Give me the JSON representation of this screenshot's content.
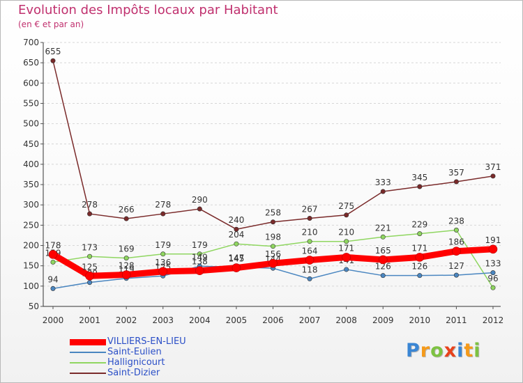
{
  "chart_data": {
    "type": "line",
    "title": "Evolution des Impôts locaux par Habitant",
    "subtitle": "(en € et par an)",
    "xlabel": "",
    "ylabel": "",
    "x": [
      2000,
      2001,
      2002,
      2003,
      2004,
      2005,
      2006,
      2007,
      2008,
      2009,
      2010,
      2011,
      2012
    ],
    "ylim": [
      50,
      700
    ],
    "yticks": [
      50,
      100,
      150,
      200,
      250,
      300,
      350,
      400,
      450,
      500,
      550,
      600,
      650,
      700
    ],
    "grid": "horizontal",
    "legend_position": "bottom-left",
    "series": [
      {
        "name": "VILLIERS-EN-LIEU",
        "color": "#ff0000",
        "values": [
          178,
          125,
          128,
          136,
          138,
          145,
          156,
          164,
          171,
          165,
          171,
          186,
          191
        ]
      },
      {
        "name": "Saint-Eulien",
        "color": "#4a86c0",
        "values": [
          94,
          109,
          119,
          125,
          149,
          147,
          144,
          118,
          141,
          126,
          126,
          127,
          133
        ]
      },
      {
        "name": "Hallignicourt",
        "color": "#8fd660",
        "values": [
          159,
          173,
          169,
          179,
          179,
          204,
          198,
          210,
          210,
          221,
          229,
          238,
          96
        ]
      },
      {
        "name": "Saint-Dizier",
        "color": "#7a2a2a",
        "values": [
          655,
          278,
          266,
          278,
          290,
          240,
          258,
          267,
          275,
          333,
          345,
          357,
          371
        ]
      }
    ]
  },
  "logo": {
    "text": "Proxiti",
    "letters": [
      "P",
      "r",
      "o",
      "x",
      "i",
      "t",
      "i"
    ],
    "colors": [
      "#3a86d4",
      "#f59a1a",
      "#7dc242",
      "#e8421c",
      "#3a86d4",
      "#f59a1a",
      "#7dc242"
    ]
  }
}
